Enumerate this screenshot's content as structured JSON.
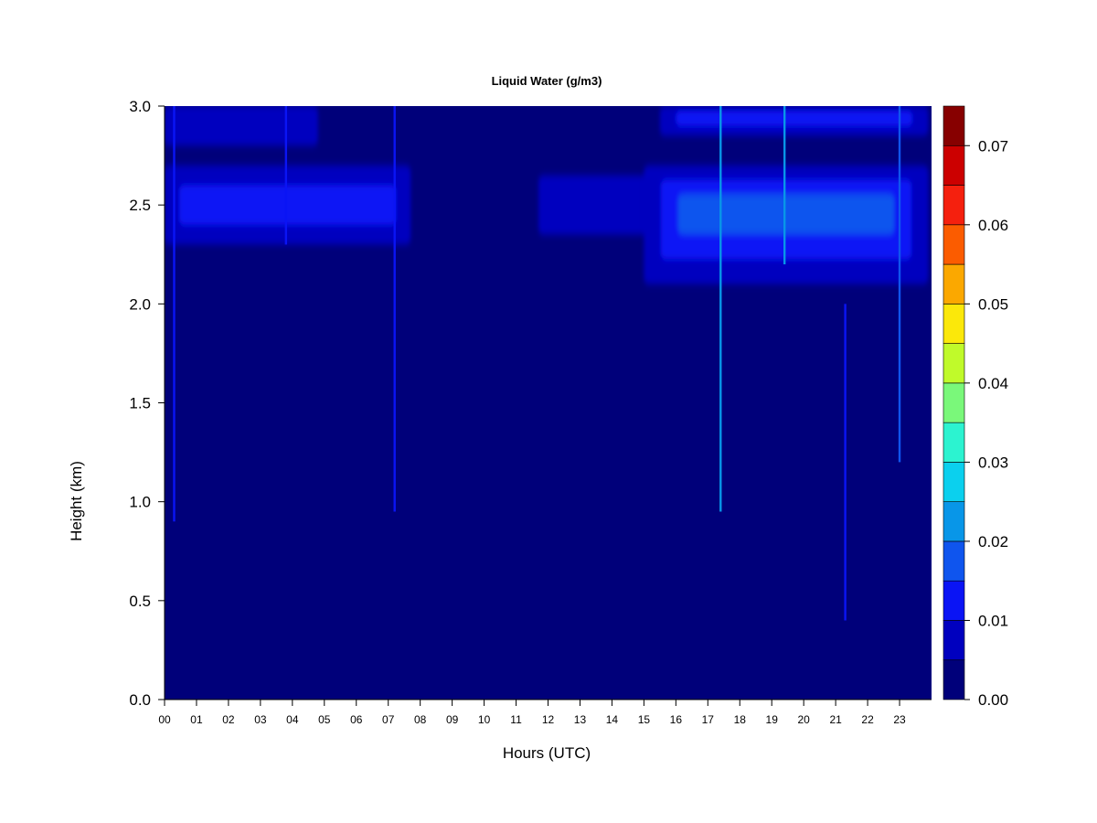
{
  "chart_data": {
    "type": "heatmap",
    "title": "Liquid Water (g/m3)",
    "xlabel": "Hours (UTC)",
    "ylabel": "Height (km)",
    "x_ticks": [
      "00",
      "01",
      "02",
      "03",
      "04",
      "05",
      "06",
      "07",
      "08",
      "09",
      "10",
      "11",
      "12",
      "13",
      "14",
      "15",
      "16",
      "17",
      "18",
      "19",
      "20",
      "21",
      "22",
      "23"
    ],
    "xlim": [
      0,
      24
    ],
    "y_ticks": [
      "0.0",
      "0.5",
      "1.0",
      "1.5",
      "2.0",
      "2.5",
      "3.0"
    ],
    "ylim": [
      0.0,
      3.0
    ],
    "colorbar": {
      "range": [
        0.0,
        0.075
      ],
      "levels": [
        0.0,
        0.005,
        0.01,
        0.015,
        0.02,
        0.025,
        0.03,
        0.035,
        0.04,
        0.045,
        0.05,
        0.055,
        0.06,
        0.065,
        0.07,
        0.075
      ],
      "colors": [
        "#00007a",
        "#0000bf",
        "#0a14f5",
        "#0f55ee",
        "#0896e8",
        "#0bd0ee",
        "#2cf3d0",
        "#7af87a",
        "#c0fa2a",
        "#fbe80a",
        "#fba800",
        "#fb5c00",
        "#f5200e",
        "#cc0000",
        "#870000"
      ],
      "tick_labels": [
        "0.00",
        "0.01",
        "0.02",
        "0.03",
        "0.04",
        "0.05",
        "0.06",
        "0.07"
      ],
      "tick_values": [
        0.0,
        0.01,
        0.02,
        0.03,
        0.04,
        0.05,
        0.06,
        0.07
      ]
    },
    "background_value": 0.002,
    "layers": [
      {
        "x": [
          0.0,
          7.7
        ],
        "y": [
          2.3,
          2.7
        ],
        "peak_y": 2.5,
        "value": 0.012
      },
      {
        "x": [
          0.0,
          4.8
        ],
        "y": [
          2.8,
          3.0
        ],
        "peak_y": 2.9,
        "value": 0.008
      },
      {
        "x": [
          11.7,
          15.5
        ],
        "y": [
          2.35,
          2.65
        ],
        "peak_y": 2.5,
        "value": 0.008
      },
      {
        "x": [
          15.0,
          23.9
        ],
        "y": [
          2.1,
          2.7
        ],
        "peak_y": 2.48,
        "value": 0.016
      },
      {
        "x": [
          15.5,
          23.9
        ],
        "y": [
          2.85,
          3.0
        ],
        "peak_y": 2.95,
        "value": 0.01
      }
    ],
    "spikes": [
      {
        "x": 0.3,
        "y": [
          0.9,
          3.0
        ],
        "value": 0.012
      },
      {
        "x": 3.8,
        "y": [
          2.3,
          3.0
        ],
        "value": 0.014
      },
      {
        "x": 7.2,
        "y": [
          0.95,
          3.0
        ],
        "value": 0.014
      },
      {
        "x": 17.4,
        "y": [
          0.95,
          3.0
        ],
        "value": 0.022
      },
      {
        "x": 19.4,
        "y": [
          2.2,
          3.0
        ],
        "value": 0.022
      },
      {
        "x": 21.3,
        "y": [
          0.4,
          2.0
        ],
        "value": 0.01
      },
      {
        "x": 23.0,
        "y": [
          1.2,
          3.0
        ],
        "value": 0.018
      }
    ]
  }
}
